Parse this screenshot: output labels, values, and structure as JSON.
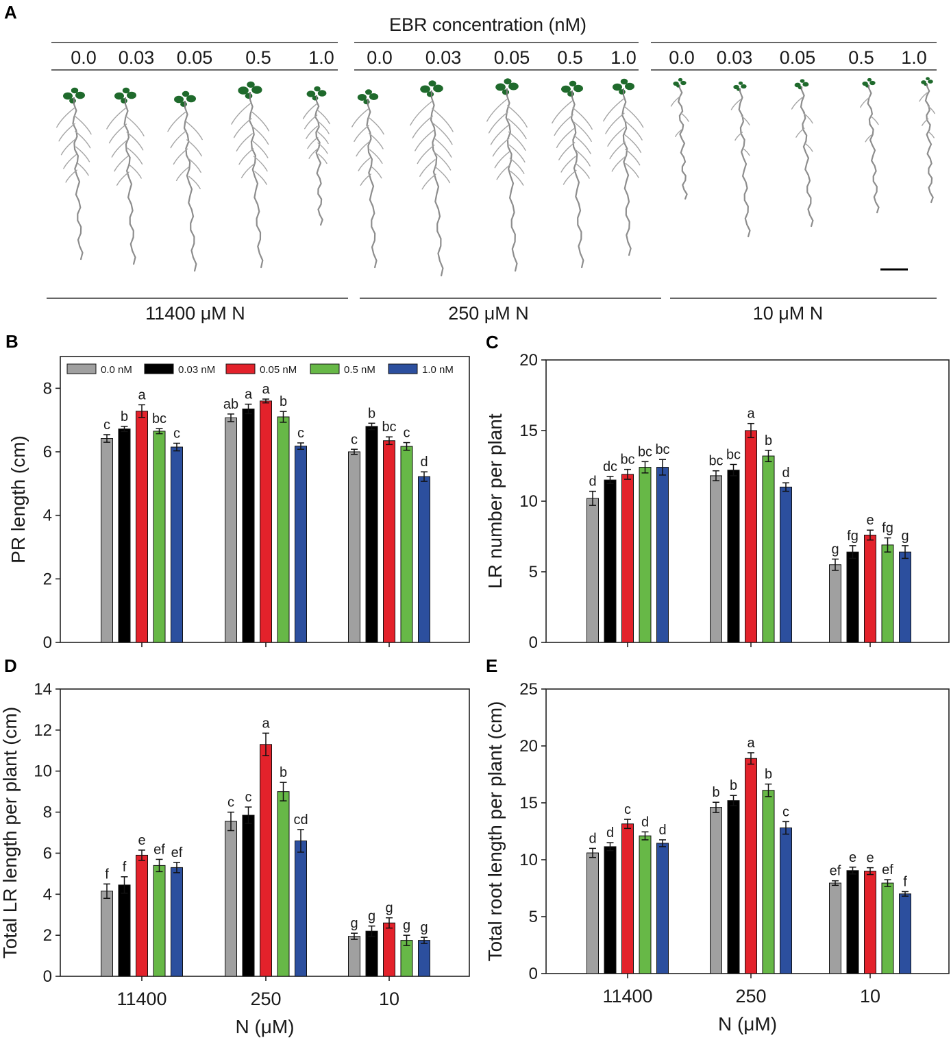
{
  "panel_a": {
    "letter": "A",
    "header": "EBR concentration (nM)",
    "concentrations": [
      "0.0",
      "0.03",
      "0.05",
      "0.5",
      "1.0"
    ],
    "groups": [
      "11400 μM N",
      "250 μM N",
      "10 μM N"
    ]
  },
  "colors": {
    "series": [
      "#a0a0a0",
      "#000000",
      "#e3222b",
      "#67b847",
      "#2c4f9e"
    ],
    "leaf": "#1f6a2c",
    "root": "#8d8d8d"
  },
  "chart_data": [
    {
      "id": "B",
      "letter": "B",
      "type": "bar",
      "categories": [
        "11400",
        "250",
        "10"
      ],
      "show_xticklabels": false,
      "xlabel": "",
      "ylabel": "PR length (cm)",
      "ylim": [
        0,
        9
      ],
      "yticks": [
        "0",
        "2",
        "4",
        "6",
        "8"
      ],
      "legend": {
        "position": "top",
        "entries": [
          "0.0 nM",
          "0.03 nM",
          "0.05 nM",
          "0.5 nM",
          "1.0 nM"
        ]
      },
      "series": [
        {
          "name": "0.0 nM",
          "values": [
            6.42,
            7.07,
            6.0
          ],
          "errors": [
            0.12,
            0.12,
            0.08
          ],
          "letters": [
            "c",
            "ab",
            "c"
          ]
        },
        {
          "name": "0.03 nM",
          "values": [
            6.72,
            7.35,
            6.8
          ],
          "errors": [
            0.08,
            0.15,
            0.1
          ],
          "letters": [
            "b",
            "a",
            "b"
          ]
        },
        {
          "name": "0.05 nM",
          "values": [
            7.28,
            7.6,
            6.35
          ],
          "errors": [
            0.2,
            0.06,
            0.12
          ],
          "letters": [
            "a",
            "a",
            "bc"
          ]
        },
        {
          "name": "0.5 nM",
          "values": [
            6.65,
            7.1,
            6.17
          ],
          "errors": [
            0.08,
            0.17,
            0.12
          ],
          "letters": [
            "bc",
            "b",
            "c"
          ]
        },
        {
          "name": "1.0 nM",
          "values": [
            6.15,
            6.18,
            5.22
          ],
          "errors": [
            0.12,
            0.1,
            0.15
          ],
          "letters": [
            "c",
            "c",
            "d"
          ]
        }
      ]
    },
    {
      "id": "C",
      "letter": "C",
      "type": "bar",
      "categories": [
        "11400",
        "250",
        "10"
      ],
      "show_xticklabels": false,
      "xlabel": "",
      "ylabel": "LR number per plant",
      "ylim": [
        0,
        20
      ],
      "yticks": [
        "0",
        "5",
        "10",
        "15",
        "20"
      ],
      "series": [
        {
          "name": "0.0 nM",
          "values": [
            10.2,
            11.8,
            5.5
          ],
          "errors": [
            0.5,
            0.35,
            0.4
          ],
          "letters": [
            "d",
            "bc",
            "g"
          ]
        },
        {
          "name": "0.03 nM",
          "values": [
            11.5,
            12.2,
            6.4
          ],
          "errors": [
            0.25,
            0.4,
            0.45
          ],
          "letters": [
            "dc",
            "bc",
            "fg"
          ]
        },
        {
          "name": "0.05 nM",
          "values": [
            11.9,
            15.0,
            7.6
          ],
          "errors": [
            0.35,
            0.5,
            0.35
          ],
          "letters": [
            "bc",
            "a",
            "e"
          ]
        },
        {
          "name": "0.5 nM",
          "values": [
            12.4,
            13.2,
            6.9
          ],
          "errors": [
            0.4,
            0.4,
            0.5
          ],
          "letters": [
            "bc",
            "b",
            "fg"
          ]
        },
        {
          "name": "1.0 nM",
          "values": [
            12.4,
            11.0,
            6.4
          ],
          "errors": [
            0.55,
            0.3,
            0.45
          ],
          "letters": [
            "bc",
            "d",
            "g"
          ]
        }
      ]
    },
    {
      "id": "D",
      "letter": "D",
      "type": "bar",
      "categories": [
        "11400",
        "250",
        "10"
      ],
      "show_xticklabels": true,
      "xlabel": "N (μM)",
      "ylabel": "Total LR length per plant (cm)",
      "ylim": [
        0,
        14
      ],
      "yticks": [
        "0",
        "2",
        "4",
        "6",
        "8",
        "10",
        "12",
        "14"
      ],
      "series": [
        {
          "name": "0.0 nM",
          "values": [
            4.15,
            7.55,
            1.95
          ],
          "errors": [
            0.35,
            0.45,
            0.15
          ],
          "letters": [
            "f",
            "c",
            "g"
          ]
        },
        {
          "name": "0.03 nM",
          "values": [
            4.45,
            7.85,
            2.2
          ],
          "errors": [
            0.4,
            0.4,
            0.25
          ],
          "letters": [
            "f",
            "c",
            "g"
          ]
        },
        {
          "name": "0.05 nM",
          "values": [
            5.9,
            11.3,
            2.6
          ],
          "errors": [
            0.25,
            0.55,
            0.25
          ],
          "letters": [
            "e",
            "a",
            "g"
          ]
        },
        {
          "name": "0.5 nM",
          "values": [
            5.4,
            9.0,
            1.75
          ],
          "errors": [
            0.3,
            0.45,
            0.25
          ],
          "letters": [
            "ef",
            "b",
            "g"
          ]
        },
        {
          "name": "1.0 nM",
          "values": [
            5.3,
            6.6,
            1.75
          ],
          "errors": [
            0.25,
            0.55,
            0.15
          ],
          "letters": [
            "ef",
            "cd",
            "g"
          ]
        }
      ]
    },
    {
      "id": "E",
      "letter": "E",
      "type": "bar",
      "categories": [
        "11400",
        "250",
        "10"
      ],
      "show_xticklabels": true,
      "xlabel": "N (μM)",
      "ylabel": "Total root length per plant  (cm)",
      "ylim": [
        0,
        25
      ],
      "yticks": [
        "0",
        "5",
        "10",
        "15",
        "20",
        "25"
      ],
      "series": [
        {
          "name": "0.0 nM",
          "values": [
            10.6,
            14.6,
            7.95
          ],
          "errors": [
            0.4,
            0.45,
            0.2
          ],
          "letters": [
            "d",
            "b",
            "ef"
          ]
        },
        {
          "name": "0.03 nM",
          "values": [
            11.15,
            15.2,
            9.05
          ],
          "errors": [
            0.35,
            0.45,
            0.3
          ],
          "letters": [
            "d",
            "b",
            "e"
          ]
        },
        {
          "name": "0.05 nM",
          "values": [
            13.15,
            18.9,
            9.0
          ],
          "errors": [
            0.4,
            0.5,
            0.3
          ],
          "letters": [
            "c",
            "a",
            "e"
          ]
        },
        {
          "name": "0.5 nM",
          "values": [
            12.1,
            16.1,
            7.95
          ],
          "errors": [
            0.35,
            0.55,
            0.3
          ],
          "letters": [
            "d",
            "b",
            "ef"
          ]
        },
        {
          "name": "1.0 nM",
          "values": [
            11.45,
            12.8,
            7.0
          ],
          "errors": [
            0.3,
            0.55,
            0.2
          ],
          "letters": [
            "d",
            "c",
            "f"
          ]
        }
      ]
    }
  ]
}
